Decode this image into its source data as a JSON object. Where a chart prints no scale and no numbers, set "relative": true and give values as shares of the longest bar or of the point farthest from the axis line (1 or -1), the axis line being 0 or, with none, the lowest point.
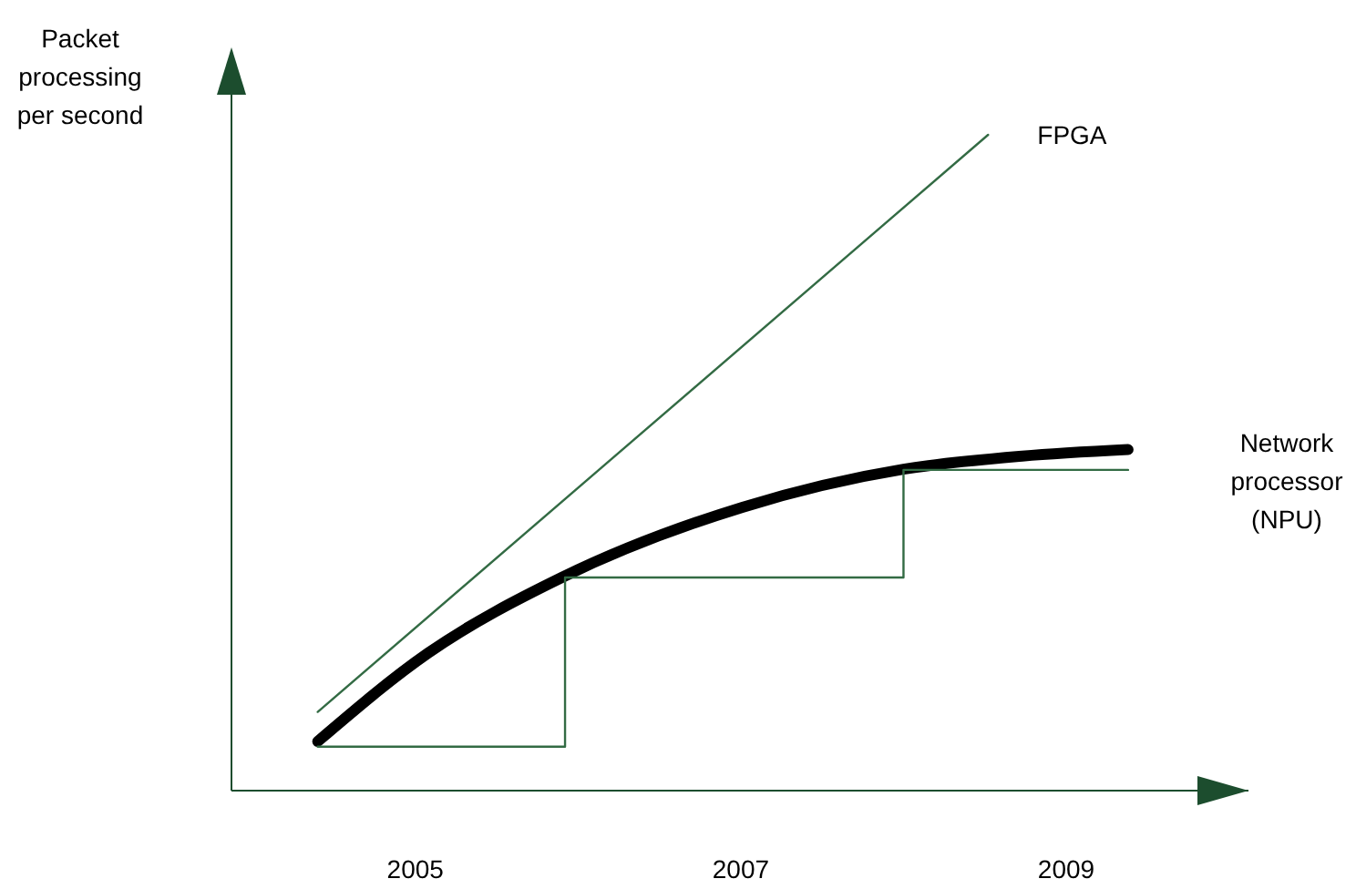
{
  "chart_data": {
    "type": "line",
    "ylabel": "Packet processing per second",
    "relative": true,
    "xlim": [
      2003.87,
      2010.12
    ],
    "xticks": [
      2005,
      2007,
      2009
    ],
    "legend": false,
    "marker": "none",
    "line_style": "solid",
    "series": [
      {
        "name": "FPGA",
        "color": "#336b44",
        "x": [
          2004.4,
          2008.52
        ],
        "values": [
          0.12,
          1
        ]
      },
      {
        "name": "Network processor (NPU)",
        "color": "#000000",
        "x": [
          2004.4,
          2005.08,
          2005.9,
          2007.01,
          2008.0,
          2008.73,
          2009.38
        ],
        "values": [
          0.075,
          0.21,
          0.325,
          0.432,
          0.49,
          0.51,
          0.52
        ]
      },
      {
        "type": "step",
        "color": "#336b44",
        "x": [
          2004.4,
          2005.92,
          2008.0,
          2009.38
        ],
        "values": [
          0.067,
          0.325,
          0.489,
          0.489
        ]
      }
    ]
  }
}
